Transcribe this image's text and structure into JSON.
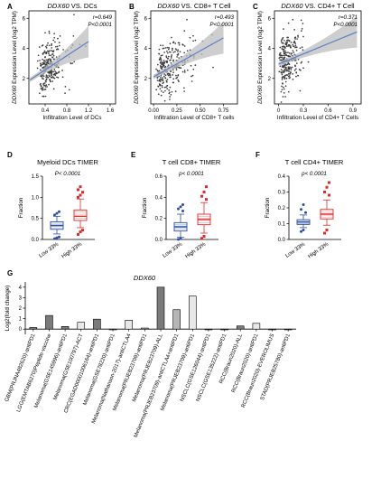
{
  "colors": {
    "scatter_point": "#3a3a3a",
    "regression_line": "#5b7fc7",
    "confidence_band": "#bdbdbd",
    "low_group": "#2a4fa8",
    "high_group": "#e02a2a",
    "bar_dark": "#7a7a7a",
    "bar_mid": "#b5b5b5",
    "bar_light": "#e8e8e8"
  },
  "chart_data": [
    {
      "panel": "A",
      "type": "scatter",
      "title": "DDX60 VS. DCs",
      "title_gene": "DDX60",
      "title_rest": " VS. DCs",
      "xlabel": "Infiltration Level of DCs",
      "ylabel": "DDX60 Expression Level (log2 TPM)",
      "ylabel_gene": "DDX60",
      "ylabel_rest": " Expression Level (log2 TPM)",
      "xlim": [
        0.1,
        1.7
      ],
      "ylim": [
        0.3,
        6.5
      ],
      "xticks": [
        0.4,
        0.8,
        1.2,
        1.6
      ],
      "xtick_labels": [
        "0.4",
        "0.8",
        "1.2",
        "1.6"
      ],
      "yticks": [
        2,
        4,
        6
      ],
      "ytick_labels": [
        "2",
        "4",
        "6"
      ],
      "stats": [
        "r=0.649",
        "P<0.0001"
      ],
      "trend": {
        "x": [
          0.12,
          1.2
        ],
        "y": [
          1.9,
          4.45
        ]
      }
    },
    {
      "panel": "B",
      "type": "scatter",
      "title": "DDX60 VS. CD8+ T Cell",
      "title_gene": "DDX60",
      "title_rest": " VS. CD8+ T Cell",
      "xlabel": "Infiltration Level of CD8+ T cells",
      "ylabel": "DDX60 Expression Level (log2 TPM)",
      "ylabel_gene": "DDX60",
      "ylabel_rest": " Expression Level (log2 TPM)",
      "xlim": [
        -0.03,
        0.9
      ],
      "ylim": [
        0.3,
        6.5
      ],
      "xticks": [
        0,
        0.25,
        0.5,
        0.75
      ],
      "xtick_labels": [
        "0.00",
        "0.25",
        "0.50",
        "0.75"
      ],
      "yticks": [
        2,
        4,
        6
      ],
      "ytick_labels": [
        "2",
        "4",
        "6"
      ],
      "stats": [
        "r=0.493",
        "P<0.0001"
      ],
      "trend": {
        "x": [
          0.0,
          0.75
        ],
        "y": [
          2.1,
          4.7
        ]
      }
    },
    {
      "panel": "C",
      "type": "scatter",
      "title": "DDX60 VS. CD4+ T Cell",
      "title_gene": "DDX60",
      "title_rest": " VS. CD4+ T Cell",
      "xlabel": "Infiltration Level of CD4+ T Cells",
      "ylabel": "DDX60 Expression Level (log2 TPM)",
      "ylabel_gene": "DDX60",
      "ylabel_rest": " Expression Level (log2 TPM)",
      "xlim": [
        -0.05,
        1.0
      ],
      "ylim": [
        0.3,
        6.5
      ],
      "xticks": [
        0,
        0.3,
        0.6,
        0.9
      ],
      "xtick_labels": [
        "0",
        "0.3",
        "0.6",
        "0.9"
      ],
      "yticks": [
        2,
        4,
        6
      ],
      "ytick_labels": [
        "2",
        "4",
        "6"
      ],
      "stats": [
        "r=0.371",
        "P<0.0001"
      ],
      "trend": {
        "x": [
          0.0,
          0.95
        ],
        "y": [
          2.95,
          5.1
        ]
      }
    },
    {
      "panel": "D",
      "type": "box",
      "title": "Myeloid DCs TIMER",
      "ylabel": "Fraction",
      "stat": "P< 0.0001",
      "ylim": [
        0,
        1.5
      ],
      "yticks": [
        0,
        0.5,
        1,
        1.5
      ],
      "ytick_labels": [
        "0.0",
        "0.5",
        "1.0",
        "1.5"
      ],
      "categories": [
        "Low 33%",
        "High 33%"
      ],
      "series": [
        {
          "median": 0.33,
          "q1": 0.24,
          "q3": 0.42,
          "whisker_low": 0.13,
          "whisker_high": 0.55,
          "outliers": [
            0.02,
            0.04,
            0.06,
            0.58,
            0.62,
            0.66
          ]
        },
        {
          "median": 0.55,
          "q1": 0.45,
          "q3": 0.7,
          "whisker_low": 0.28,
          "whisker_high": 0.96,
          "outliers": [
            0.12,
            0.18,
            0.22,
            1.0,
            1.05,
            1.12,
            1.18,
            1.25
          ]
        }
      ]
    },
    {
      "panel": "E",
      "type": "box",
      "title": "T cell CD8+ TIMER",
      "ylabel": "Fraction",
      "stat": "p< 0.0001",
      "ylim": [
        0,
        0.6
      ],
      "yticks": [
        0,
        0.2,
        0.4,
        0.6
      ],
      "ytick_labels": [
        "0.0",
        "0.2",
        "0.4",
        "0.6"
      ],
      "categories": [
        "Low 33%",
        "High 33%"
      ],
      "series": [
        {
          "median": 0.12,
          "q1": 0.08,
          "q3": 0.16,
          "whisker_low": 0.02,
          "whisker_high": 0.24,
          "outliers": [
            0.0,
            0.01,
            0.27,
            0.29,
            0.31,
            0.33
          ]
        },
        {
          "median": 0.19,
          "q1": 0.14,
          "q3": 0.24,
          "whisker_low": 0.06,
          "whisker_high": 0.35,
          "outliers": [
            0.01,
            0.03,
            0.38,
            0.41,
            0.45,
            0.5
          ]
        }
      ]
    },
    {
      "panel": "F",
      "type": "box",
      "title": "T cell CD4+ TIMER",
      "ylabel": "Fraction",
      "stat": "p< 0.0001",
      "ylim": [
        0,
        0.4
      ],
      "yticks": [
        0,
        0.1,
        0.2,
        0.3,
        0.4
      ],
      "ytick_labels": [
        "0.0",
        "0.1",
        "0.2",
        "0.3",
        "0.4"
      ],
      "categories": [
        "Low 33%",
        "High 33%"
      ],
      "series": [
        {
          "median": 0.11,
          "q1": 0.095,
          "q3": 0.125,
          "whisker_low": 0.075,
          "whisker_high": 0.155,
          "outliers": [
            0.05,
            0.06,
            0.17,
            0.19,
            0.22
          ]
        },
        {
          "median": 0.16,
          "q1": 0.13,
          "q3": 0.19,
          "whisker_low": 0.09,
          "whisker_high": 0.25,
          "outliers": [
            0.04,
            0.06,
            0.28,
            0.3,
            0.33,
            0.36
          ]
        }
      ]
    },
    {
      "panel": "G",
      "type": "bar",
      "title": "DDX60",
      "ylabel": "Log2(fold change)",
      "ylim": [
        -0.5,
        4.5
      ],
      "yticks": [
        0,
        1,
        2,
        3,
        4
      ],
      "ytick_labels": [
        "0",
        "1",
        "2",
        "3",
        "4"
      ],
      "categories": [
        "GBM(PRJNA482620)-antiPD1",
        "LGG(EMTAB6270)Peptide-vaccine",
        "Melanoma(GSE145996)-antiPD1",
        "Melanoma(GSE100797)-ACT",
        "CRC(EGAD00001006164)-antiPD1",
        "Melanoma(GSE78220)-antiPD1",
        "Melanoma(Nathanson-2017)-antiCTLA4",
        "Melanoma(PRJEB23709)-antiPD1",
        "Melanoma(PRJEB23709)-ALL",
        "Melanoma(PRJEB23709)-antiCTLA4+antiPD1",
        "Melanoma(PRJEB23709)-antiPD1",
        "NSCLC(GSE126044)-antiPD1",
        "NSCLC(GSE135222)-antiPD1",
        "RCC(Braun2020)-ALL",
        "RCC(Braun2020)-antiPD1",
        "RCC(Braun2020)-EVEROLIMUS",
        "STAD(PRJEB25780)-antiPD1"
      ],
      "values": [
        0.15,
        1.3,
        0.25,
        0.65,
        0.95,
        -0.05,
        0.85,
        0.1,
        4.0,
        1.85,
        3.15,
        -0.05,
        -0.05,
        0.3,
        0.55,
        -0.05,
        -0.05
      ],
      "shades": [
        "dark",
        "dark",
        "dark",
        "light",
        "dark",
        "mid",
        "light",
        "mid",
        "dark",
        "mid",
        "light",
        "dark",
        "dark",
        "dark",
        "light",
        "dark",
        "dark"
      ]
    }
  ]
}
